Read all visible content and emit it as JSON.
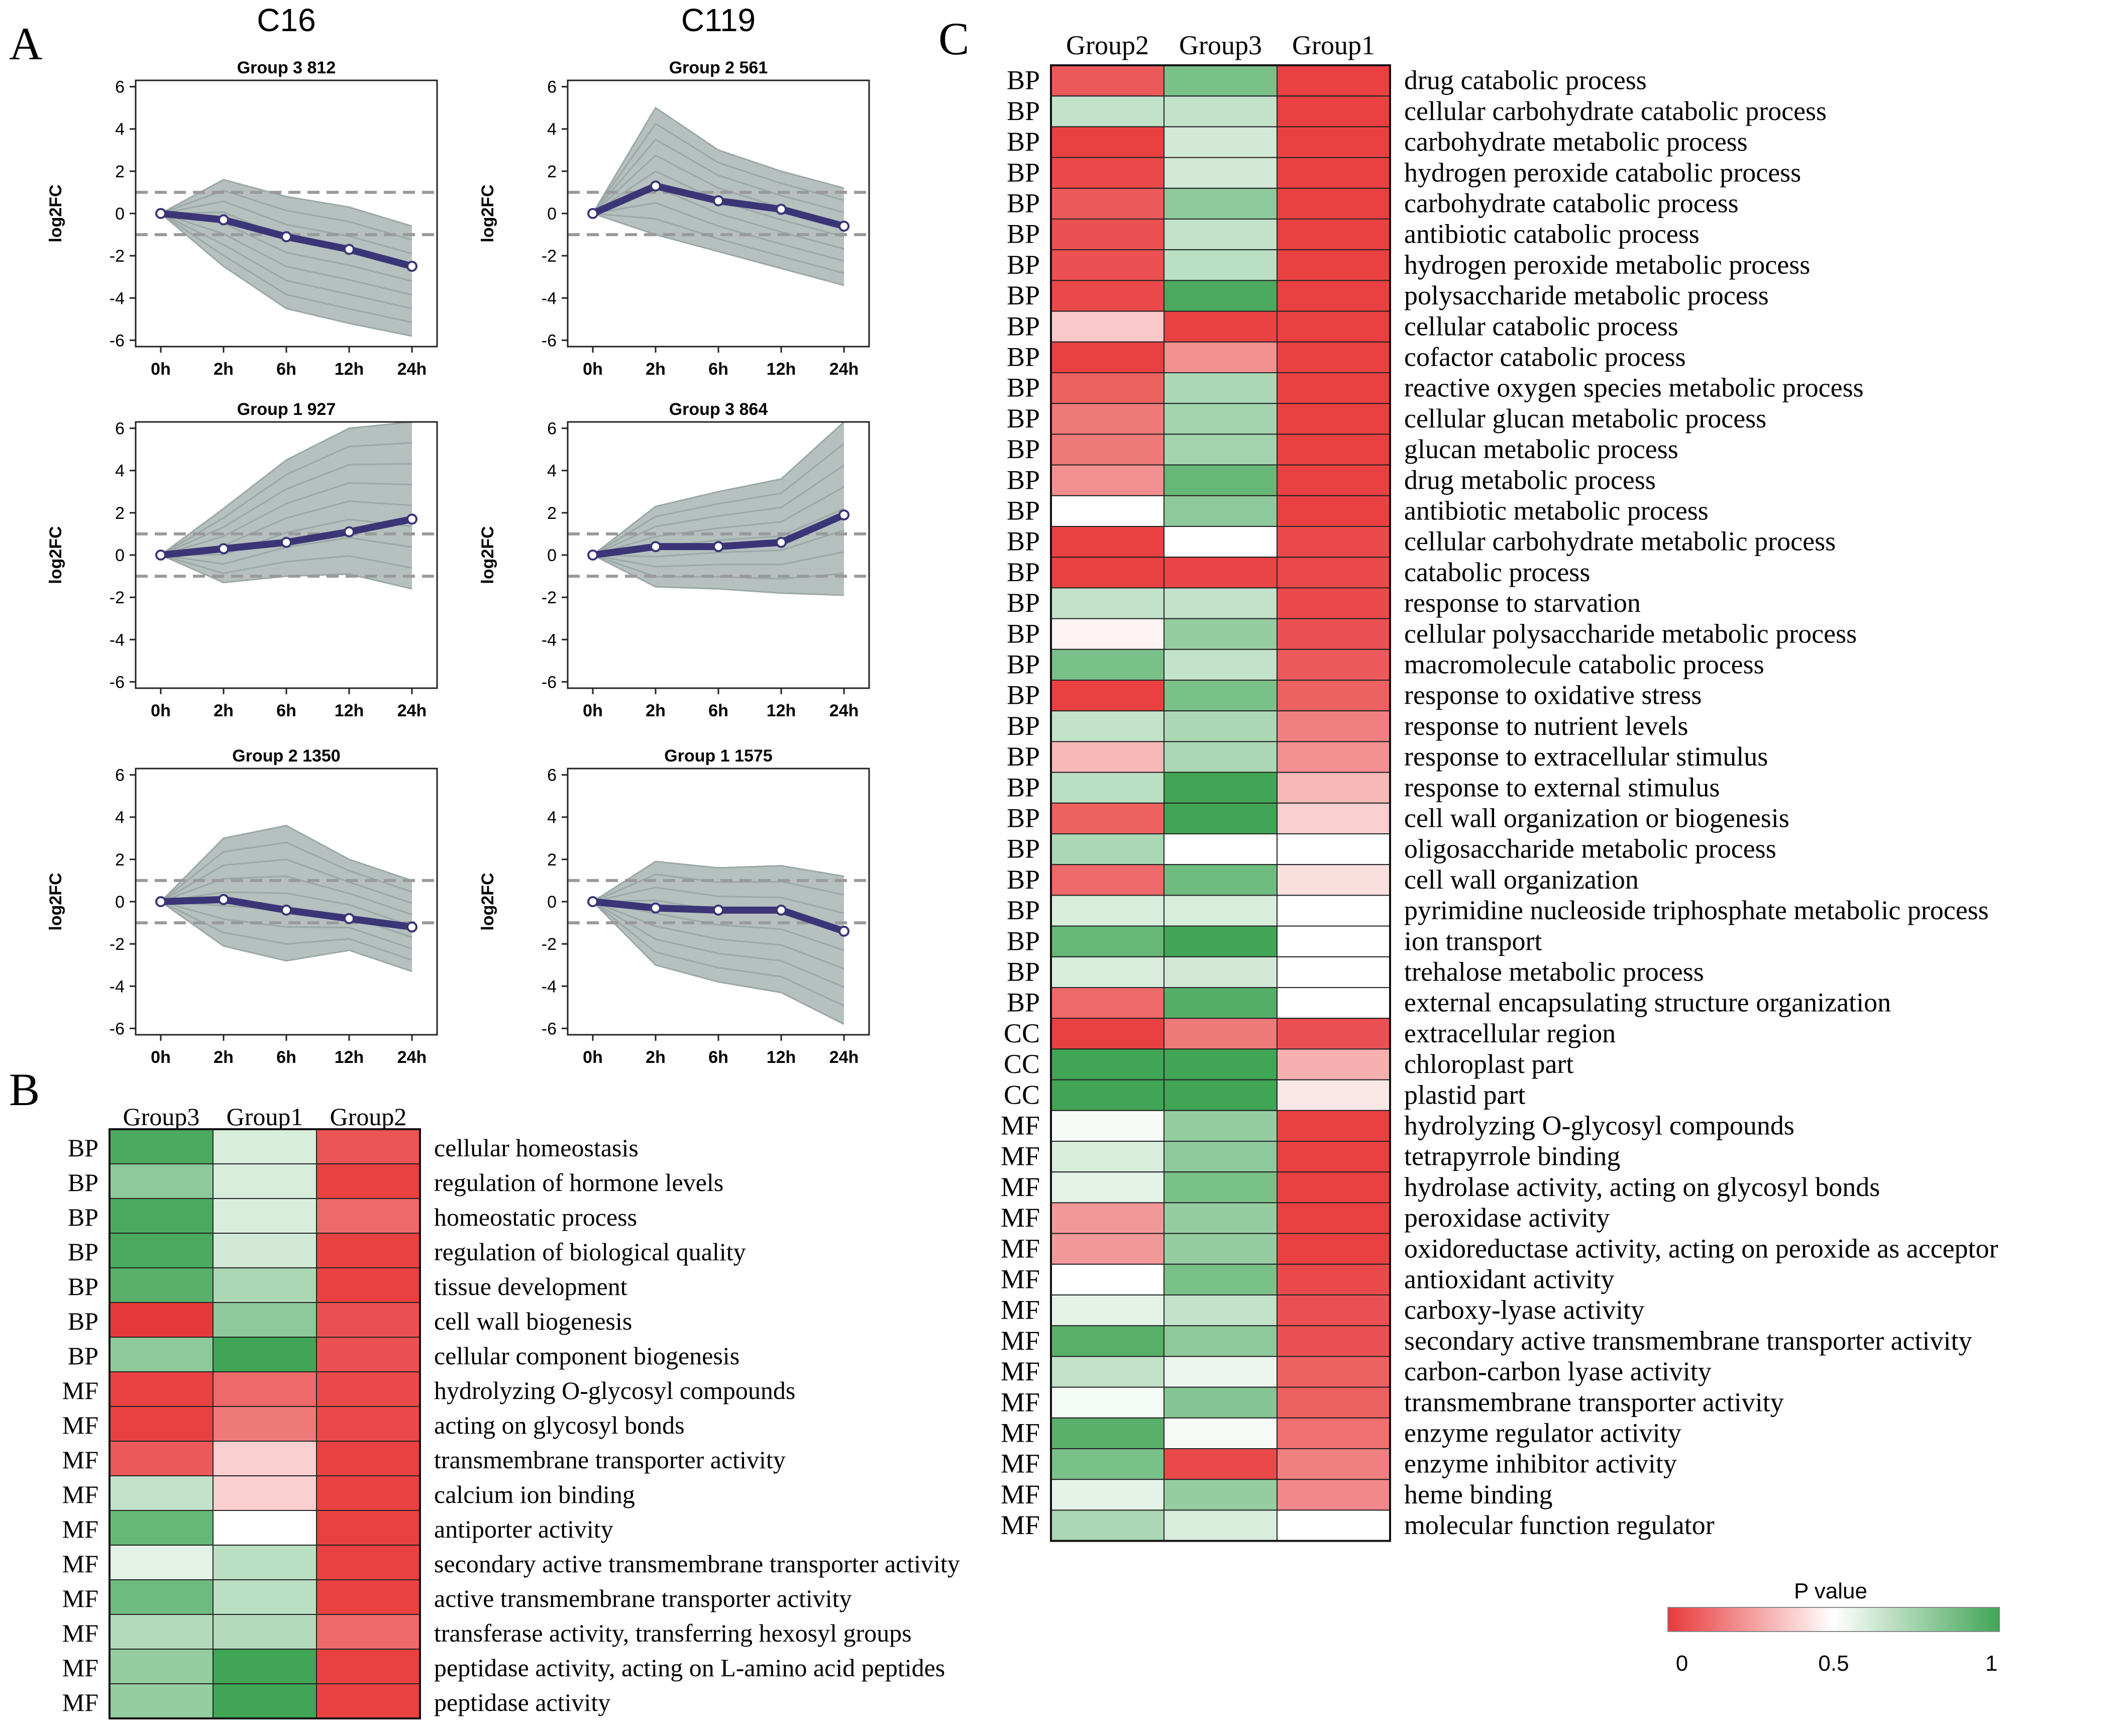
{
  "panels": {
    "a_label": "A",
    "b_label": "B",
    "c_label": "C"
  },
  "legend": {
    "title": "P value",
    "ticks": [
      "0",
      "0.5",
      "1"
    ],
    "color_low": "#e8393a",
    "color_mid": "#ffffff",
    "color_high": "#41a556"
  },
  "chart_data": [
    {
      "type": "line",
      "panel": "A",
      "column_titles": [
        "C16",
        "C119"
      ],
      "xlabel": "",
      "ylabel": "log2FC",
      "x": [
        "0h",
        "2h",
        "6h",
        "12h",
        "24h"
      ],
      "ylim": [
        -6.3,
        6.3
      ],
      "yticks": [
        6,
        4,
        2,
        0,
        -2,
        -4,
        -6
      ],
      "threshold_lines": [
        1,
        -1
      ],
      "subplots": [
        {
          "title": "Group 3 812",
          "column": "C16",
          "values": [
            0,
            -0.3,
            -1.1,
            -1.7,
            -2.5
          ],
          "spread_low": [
            0,
            -2.5,
            -4.5,
            -5.2,
            -5.8
          ],
          "spread_high": [
            0,
            1.6,
            0.8,
            0.3,
            -0.6
          ]
        },
        {
          "title": "Group 2 561",
          "column": "C119",
          "values": [
            0,
            1.3,
            0.6,
            0.2,
            -0.6
          ],
          "spread_low": [
            0,
            -1.0,
            -1.8,
            -2.6,
            -3.4
          ],
          "spread_high": [
            0,
            5.0,
            3.0,
            2.0,
            1.2
          ]
        },
        {
          "title": "Group 1 927",
          "column": "C16",
          "values": [
            0,
            0.3,
            0.6,
            1.1,
            1.7
          ],
          "spread_low": [
            0,
            -1.3,
            -1.0,
            -0.9,
            -1.6
          ],
          "spread_high": [
            0,
            2.2,
            4.5,
            6.0,
            6.3
          ]
        },
        {
          "title": "Group 3 864",
          "column": "C119",
          "values": [
            0,
            0.4,
            0.4,
            0.6,
            1.9
          ],
          "spread_low": [
            0,
            -1.5,
            -1.6,
            -1.8,
            -1.9
          ],
          "spread_high": [
            0,
            2.3,
            3.0,
            3.6,
            6.3
          ]
        },
        {
          "title": "Group 2 1350",
          "column": "C16",
          "values": [
            0,
            0.1,
            -0.4,
            -0.8,
            -1.2
          ],
          "spread_low": [
            0,
            -2.1,
            -2.8,
            -2.3,
            -3.3
          ],
          "spread_high": [
            0,
            3.0,
            3.6,
            2.0,
            1.0
          ]
        },
        {
          "title": "Group 1 1575",
          "column": "C119",
          "values": [
            0,
            -0.3,
            -0.4,
            -0.4,
            -1.4
          ],
          "spread_low": [
            0,
            -3.0,
            -3.8,
            -4.3,
            -5.8
          ],
          "spread_high": [
            0,
            1.9,
            1.6,
            1.7,
            1.2
          ]
        }
      ]
    },
    {
      "type": "heatmap",
      "panel": "B",
      "columns": [
        "Group3",
        "Group1",
        "Group2"
      ],
      "rows": [
        {
          "category": "BP",
          "term": "cellular homeostasis",
          "values": [
            0.97,
            0.6,
            0.07
          ]
        },
        {
          "category": "BP",
          "term": "regulation of hormone levels",
          "values": [
            0.8,
            0.6,
            0.02
          ]
        },
        {
          "category": "BP",
          "term": "homeostatic process",
          "values": [
            0.97,
            0.6,
            0.12
          ]
        },
        {
          "category": "BP",
          "term": "regulation of biological quality",
          "values": [
            0.97,
            0.62,
            0.02
          ]
        },
        {
          "category": "BP",
          "term": "tissue development",
          "values": [
            0.94,
            0.72,
            0.02
          ]
        },
        {
          "category": "BP",
          "term": "cell wall biogenesis",
          "values": [
            0.0,
            0.8,
            0.06
          ]
        },
        {
          "category": "BP",
          "term": "cellular component biogenesis",
          "values": [
            0.8,
            1.0,
            0.06
          ]
        },
        {
          "category": "MF",
          "term": "hydrolyzing O-glycosyl compounds",
          "values": [
            0.02,
            0.12,
            0.04
          ]
        },
        {
          "category": "MF",
          "term": "acting on glycosyl bonds",
          "values": [
            0.02,
            0.16,
            0.04
          ]
        },
        {
          "category": "MF",
          "term": "transmembrane transporter activity",
          "values": [
            0.08,
            0.38,
            0.02
          ]
        },
        {
          "category": "MF",
          "term": "calcium ion binding",
          "values": [
            0.66,
            0.38,
            0.02
          ]
        },
        {
          "category": "MF",
          "term": "antiporter activity",
          "values": [
            0.9,
            0.5,
            0.02
          ]
        },
        {
          "category": "MF",
          "term": "secondary active transmembrane transporter activity",
          "values": [
            0.57,
            0.68,
            0.02
          ]
        },
        {
          "category": "MF",
          "term": "active transmembrane transporter activity",
          "values": [
            0.88,
            0.68,
            0.02
          ]
        },
        {
          "category": "MF",
          "term": "transferase activity, transferring hexosyl groups",
          "values": [
            0.7,
            0.7,
            0.12
          ]
        },
        {
          "category": "MF",
          "term": "peptidase activity, acting on L-amino acid peptides",
          "values": [
            0.78,
            1.0,
            0.02
          ]
        },
        {
          "category": "MF",
          "term": "peptidase activity",
          "values": [
            0.78,
            1.0,
            0.02
          ]
        }
      ]
    },
    {
      "type": "heatmap",
      "panel": "C",
      "columns": [
        "Group2",
        "Group3",
        "Group1"
      ],
      "rows": [
        {
          "category": "BP",
          "term": "drug catabolic process",
          "values": [
            0.08,
            0.85,
            0.02
          ]
        },
        {
          "category": "BP",
          "term": "cellular carbohydrate catabolic process",
          "values": [
            0.66,
            0.66,
            0.02
          ]
        },
        {
          "category": "BP",
          "term": "carbohydrate metabolic process",
          "values": [
            0.02,
            0.62,
            0.02
          ]
        },
        {
          "category": "BP",
          "term": "hydrogen peroxide catabolic process",
          "values": [
            0.04,
            0.62,
            0.02
          ]
        },
        {
          "category": "BP",
          "term": "carbohydrate catabolic process",
          "values": [
            0.08,
            0.8,
            0.02
          ]
        },
        {
          "category": "BP",
          "term": "antibiotic catabolic process",
          "values": [
            0.06,
            0.66,
            0.02
          ]
        },
        {
          "category": "BP",
          "term": "hydrogen peroxide metabolic process",
          "values": [
            0.06,
            0.68,
            0.02
          ]
        },
        {
          "category": "BP",
          "term": "polysaccharide metabolic process",
          "values": [
            0.04,
            0.97,
            0.02
          ]
        },
        {
          "category": "BP",
          "term": "cellular catabolic process",
          "values": [
            0.36,
            0.02,
            0.02
          ]
        },
        {
          "category": "BP",
          "term": "cofactor catabolic process",
          "values": [
            0.02,
            0.22,
            0.02
          ]
        },
        {
          "category": "BP",
          "term": "reactive oxygen species metabolic process",
          "values": [
            0.1,
            0.72,
            0.02
          ]
        },
        {
          "category": "BP",
          "term": "cellular glucan metabolic process",
          "values": [
            0.16,
            0.74,
            0.02
          ]
        },
        {
          "category": "BP",
          "term": "glucan metabolic process",
          "values": [
            0.16,
            0.74,
            0.02
          ]
        },
        {
          "category": "BP",
          "term": "drug metabolic process",
          "values": [
            0.22,
            0.9,
            0.02
          ]
        },
        {
          "category": "BP",
          "term": "antibiotic metabolic process",
          "values": [
            0.5,
            0.8,
            0.02
          ]
        },
        {
          "category": "BP",
          "term": "cellular carbohydrate metabolic process",
          "values": [
            0.02,
            0.5,
            0.04
          ]
        },
        {
          "category": "BP",
          "term": "catabolic process",
          "values": [
            0.02,
            0.03,
            0.04
          ]
        },
        {
          "category": "BP",
          "term": "response to starvation",
          "values": [
            0.66,
            0.66,
            0.04
          ]
        },
        {
          "category": "BP",
          "term": "cellular polysaccharide metabolic process",
          "values": [
            0.47,
            0.78,
            0.06
          ]
        },
        {
          "category": "BP",
          "term": "macromolecule catabolic process",
          "values": [
            0.85,
            0.66,
            0.08
          ]
        },
        {
          "category": "BP",
          "term": "response to oxidative stress",
          "values": [
            0.02,
            0.85,
            0.1
          ]
        },
        {
          "category": "BP",
          "term": "response to nutrient levels",
          "values": [
            0.66,
            0.72,
            0.18
          ]
        },
        {
          "category": "BP",
          "term": "response to extracellular stimulus",
          "values": [
            0.32,
            0.72,
            0.22
          ]
        },
        {
          "category": "BP",
          "term": "response to external stimulus",
          "values": [
            0.68,
            1.0,
            0.32
          ]
        },
        {
          "category": "BP",
          "term": "cell wall organization or biogenesis",
          "values": [
            0.1,
            1.0,
            0.38
          ]
        },
        {
          "category": "BP",
          "term": "oligosaccharide metabolic process",
          "values": [
            0.72,
            0.5,
            0.5
          ]
        },
        {
          "category": "BP",
          "term": "cell wall organization",
          "values": [
            0.12,
            0.88,
            0.42
          ]
        },
        {
          "category": "BP",
          "term": "pyrimidine nucleoside triphosphate metabolic process",
          "values": [
            0.6,
            0.6,
            0.5
          ]
        },
        {
          "category": "BP",
          "term": "ion transport",
          "values": [
            0.9,
            1.0,
            0.5
          ]
        },
        {
          "category": "BP",
          "term": "trehalose metabolic process",
          "values": [
            0.6,
            0.62,
            0.5
          ]
        },
        {
          "category": "BP",
          "term": "external encapsulating structure organization",
          "values": [
            0.12,
            0.95,
            0.5
          ]
        },
        {
          "category": "CC",
          "term": "extracellular region",
          "values": [
            0.02,
            0.16,
            0.06
          ]
        },
        {
          "category": "CC",
          "term": "chloroplast part",
          "values": [
            1.0,
            1.0,
            0.3
          ]
        },
        {
          "category": "CC",
          "term": "plastid part",
          "values": [
            1.0,
            1.0,
            0.44
          ]
        },
        {
          "category": "MF",
          "term": "hydrolyzing O-glycosyl compounds",
          "values": [
            0.52,
            0.78,
            0.02
          ]
        },
        {
          "category": "MF",
          "term": "tetrapyrrole binding",
          "values": [
            0.6,
            0.8,
            0.02
          ]
        },
        {
          "category": "MF",
          "term": "hydrolase activity, acting on glycosyl bonds",
          "values": [
            0.57,
            0.85,
            0.02
          ]
        },
        {
          "category": "MF",
          "term": "peroxidase activity",
          "values": [
            0.24,
            0.78,
            0.02
          ]
        },
        {
          "category": "MF",
          "term": "oxidoreductase activity, acting on peroxide as acceptor",
          "values": [
            0.24,
            0.78,
            0.02
          ]
        },
        {
          "category": "MF",
          "term": "antioxidant activity",
          "values": [
            0.5,
            0.85,
            0.04
          ]
        },
        {
          "category": "MF",
          "term": "carboxy-lyase activity",
          "values": [
            0.57,
            0.66,
            0.06
          ]
        },
        {
          "category": "MF",
          "term": "secondary active transmembrane transporter activity",
          "values": [
            0.94,
            0.8,
            0.06
          ]
        },
        {
          "category": "MF",
          "term": "carbon-carbon lyase activity",
          "values": [
            0.66,
            0.55,
            0.1
          ]
        },
        {
          "category": "MF",
          "term": "transmembrane transporter activity",
          "values": [
            0.53,
            0.82,
            0.1
          ]
        },
        {
          "category": "MF",
          "term": "enzyme regulator activity",
          "values": [
            0.94,
            0.52,
            0.14
          ]
        },
        {
          "category": "MF",
          "term": "enzyme inhibitor activity",
          "values": [
            0.85,
            0.04,
            0.18
          ]
        },
        {
          "category": "MF",
          "term": "heme binding",
          "values": [
            0.57,
            0.78,
            0.2
          ]
        },
        {
          "category": "MF",
          "term": "molecular function regulator",
          "values": [
            0.72,
            0.6,
            0.5
          ]
        }
      ]
    }
  ]
}
